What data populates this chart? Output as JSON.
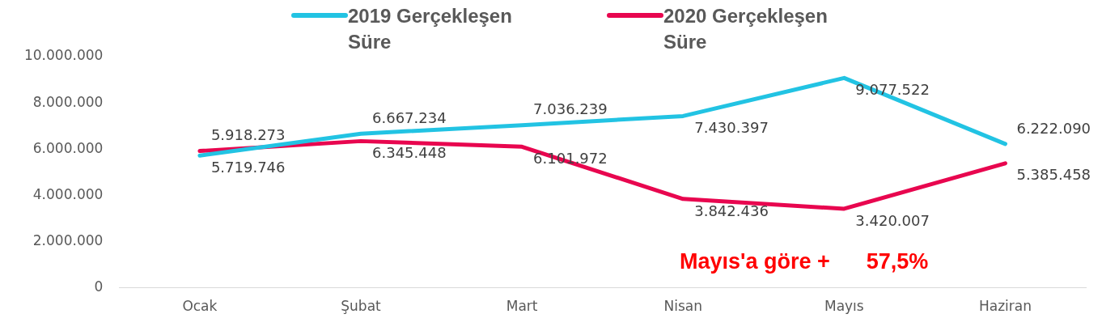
{
  "chart_data": {
    "type": "line",
    "categories": [
      "Ocak",
      "Şubat",
      "Mart",
      "Nisan",
      "Mayıs",
      "Haziran"
    ],
    "series": [
      {
        "name": "2019 Gerçekleşen Süre",
        "color": "#22c3e3",
        "values": [
          5719746,
          6667234,
          7036239,
          7430397,
          9077522,
          6222090
        ],
        "value_labels": [
          "5.719.746",
          "6.667.234",
          "7.036.239",
          "7.430.397",
          "9.077.522",
          "6.222.090"
        ]
      },
      {
        "name": "2020 Gerçekleşen Süre",
        "color": "#e8064f",
        "values": [
          5918273,
          6345448,
          6101972,
          3842436,
          3420007,
          5385458
        ],
        "value_labels": [
          "5.918.273",
          "6.345.448",
          "6.101.972",
          "3.842.436",
          "3.420.007",
          "5.385.458"
        ]
      }
    ],
    "ylim": [
      0,
      10000000
    ],
    "yticks": [
      {
        "value": 0,
        "label": "0"
      },
      {
        "value": 2000000,
        "label": "2.000.000"
      },
      {
        "value": 4000000,
        "label": "4.000.000"
      },
      {
        "value": 6000000,
        "label": "6.000.000"
      },
      {
        "value": 8000000,
        "label": "8.000.000"
      },
      {
        "value": 10000000,
        "label": "10.000.000"
      }
    ],
    "grid": false,
    "legend": "top",
    "marker": "none",
    "line_style": "solid",
    "annotations": [
      "Mayıs'a göre +      57,5%"
    ]
  }
}
